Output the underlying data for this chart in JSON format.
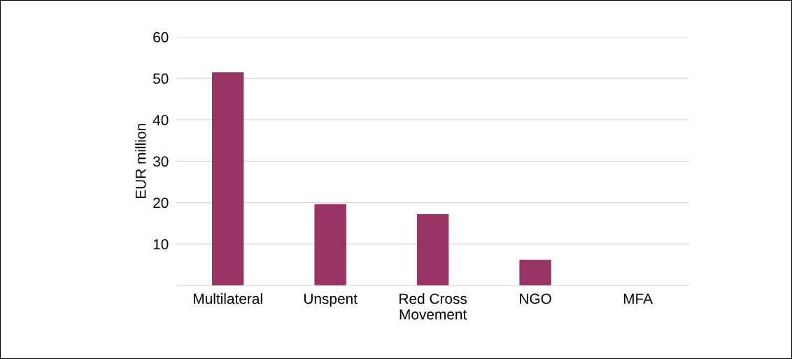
{
  "chart_data": {
    "type": "bar",
    "ylabel": "EUR million",
    "categories": [
      "Multilateral",
      "Unspent",
      "Red Cross\nMovement",
      "NGO",
      "MFA"
    ],
    "values": [
      51.5,
      19.6,
      17.2,
      6.2,
      0
    ],
    "color": "#983363",
    "ylim": [
      0,
      60
    ],
    "yticks": [
      {
        "value": 0,
        "label": null
      },
      10,
      20,
      30,
      40,
      50,
      60
    ],
    "grid": "y"
  }
}
